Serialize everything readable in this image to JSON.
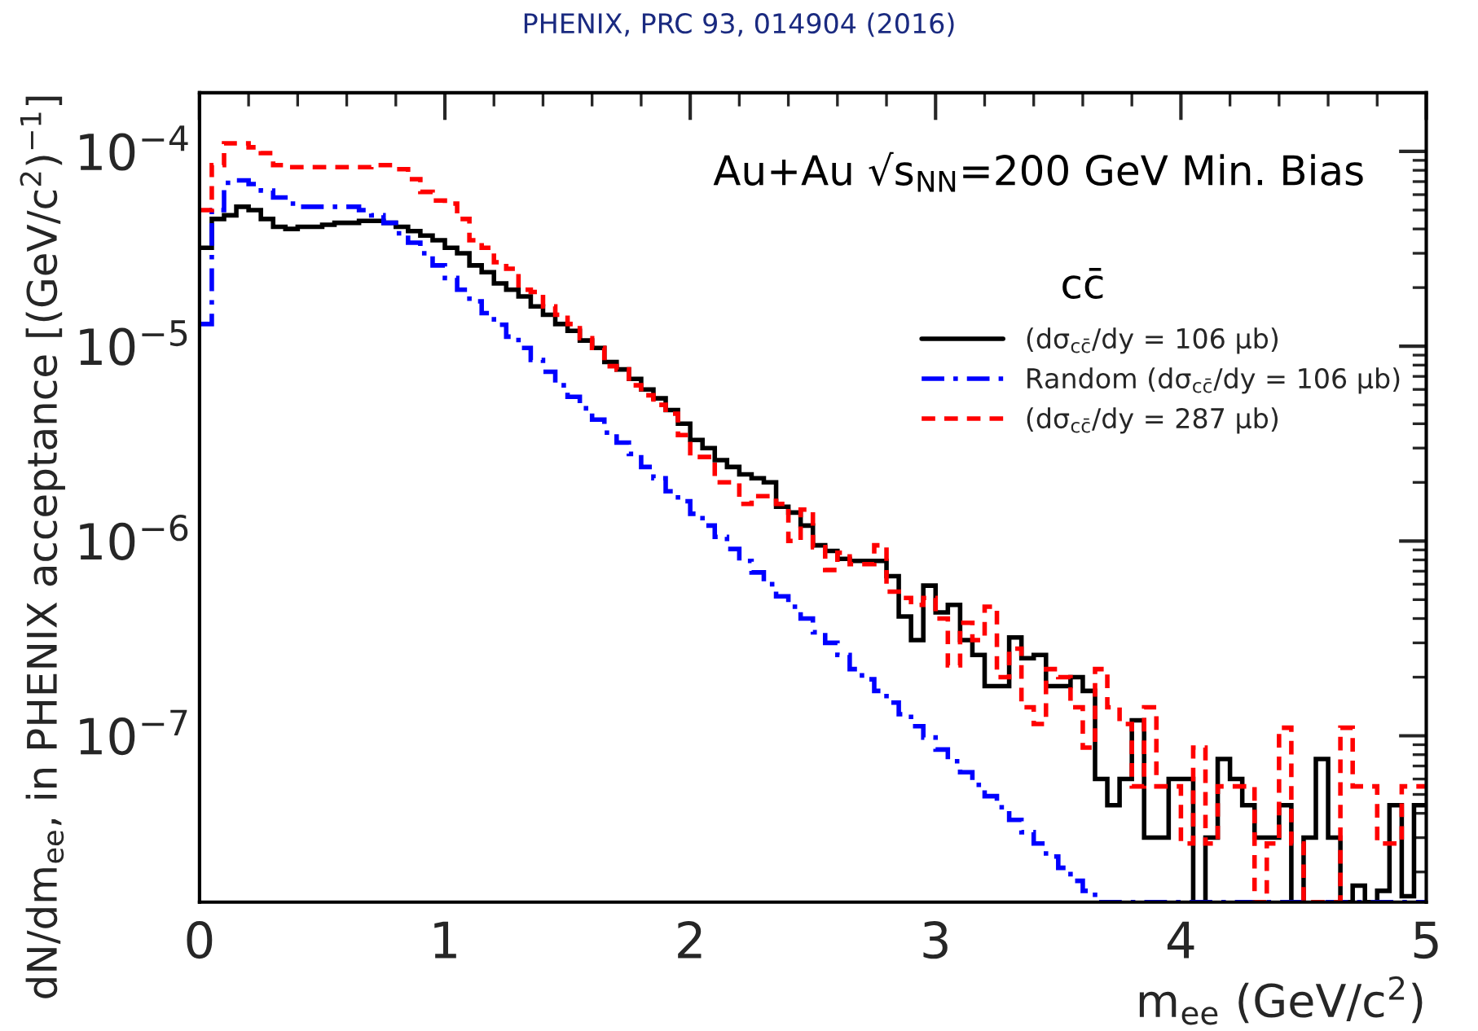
{
  "chart_data": {
    "type": "histogram",
    "xlabel": "m$_{ee}$ (GeV/c$^{2}$)",
    "ylabel": "dN/dm$_{ee}$, in PHENIX acceptance [(GeV/c$^{2}$)$^{−1}$]",
    "annotations": [
      "PHENIX, PRC 93, 014904 (2016)",
      "Au+Au √s$_{NN}$=200 GeV Min. Bias",
      "cc̄"
    ],
    "bins": [
      0,
      0.05,
      0.1,
      0.15,
      0.2,
      0.25,
      0.3,
      0.35,
      0.4,
      0.45,
      0.5,
      0.55,
      0.6,
      0.65,
      0.7,
      0.75,
      0.8,
      0.85,
      0.9,
      0.95,
      1,
      1.05,
      1.1,
      1.15,
      1.2,
      1.25,
      1.3,
      1.35,
      1.4,
      1.45,
      1.5,
      1.55,
      1.6,
      1.65,
      1.7,
      1.75,
      1.8,
      1.85,
      1.9,
      1.95,
      2,
      2.05,
      2.1,
      2.15,
      2.2,
      2.25,
      2.3,
      2.35,
      2.4,
      2.45,
      2.5,
      2.55,
      2.6,
      2.65,
      2.7,
      2.75,
      2.8,
      2.85,
      2.9,
      2.95,
      3,
      3.05,
      3.1,
      3.15,
      3.2,
      3.25,
      3.3,
      3.35,
      3.4,
      3.45,
      3.5,
      3.55,
      3.6,
      3.65,
      3.7,
      3.75,
      3.8,
      3.85,
      3.9,
      3.95,
      4,
      4.05,
      4.1,
      4.15,
      4.2,
      4.25,
      4.3,
      4.35,
      4.4,
      4.45,
      4.5,
      4.55,
      4.6,
      4.65,
      4.7,
      4.75,
      4.8,
      4.85,
      4.9,
      4.95,
      5
    ],
    "series": [
      {
        "name": "(dσ$_{cc̄}$/dy = 106 μb)",
        "color": "#000000",
        "line_style": "solid",
        "values": [
          3.2e-05,
          4.5e-05,
          4.7e-05,
          5.2e-05,
          5e-05,
          4.5e-05,
          4.1e-05,
          4e-05,
          4.1e-05,
          4.1e-05,
          4.2e-05,
          4.3e-05,
          4.3e-05,
          4.4e-05,
          4.4e-05,
          4.3e-05,
          4.1e-05,
          3.9e-05,
          3.7e-05,
          3.5e-05,
          3.2e-05,
          3e-05,
          2.6e-05,
          2.4e-05,
          2.1e-05,
          1.95e-05,
          1.8e-05,
          1.6e-05,
          1.45e-05,
          1.3e-05,
          1.2e-05,
          1.07e-05,
          9.8e-06,
          8.3e-06,
          7.6e-06,
          6.8e-06,
          6e-06,
          5.4e-06,
          4.7e-06,
          4e-06,
          3.3e-06,
          3e-06,
          2.6e-06,
          2.4e-06,
          2.2e-06,
          2.1e-06,
          2e-06,
          1.5e-06,
          1.4e-06,
          1.2e-06,
          9.5e-07,
          8.9e-07,
          8.1e-07,
          7.9e-07,
          7.9e-07,
          7.9e-07,
          6.6e-07,
          4.1e-07,
          3.1e-07,
          5.9e-07,
          4.3e-07,
          4.7e-07,
          3.1e-07,
          2.6e-07,
          1.8e-07,
          1.8e-07,
          3.2e-07,
          2.5e-07,
          2.6e-07,
          1.8e-07,
          1.8e-07,
          2e-07,
          1.7e-07,
          6e-08,
          4.4e-08,
          6e-08,
          1.2e-07,
          3e-08,
          3e-08,
          6e-08,
          6e-08,
          null,
          3e-08,
          7.6e-08,
          6e-08,
          4.4e-08,
          3e-08,
          3e-08,
          4.4e-08,
          null,
          3e-08,
          7.6e-08,
          3e-08,
          null,
          1.7e-08,
          null,
          1.6e-08,
          4.4e-08,
          1.5e-08,
          4.4e-08
        ]
      },
      {
        "name": "Random (dσ$_{cc̄}$/dy = 106 μb)",
        "color": "#0000ff",
        "line_style": "dashdot",
        "values": [
          1.3e-05,
          5e-05,
          6.9e-05,
          7.1e-05,
          6.8e-05,
          6.3e-05,
          5.8e-05,
          5.4e-05,
          5.2e-05,
          5.2e-05,
          5.2e-05,
          5.2e-05,
          5.2e-05,
          5e-05,
          4.7e-05,
          4.3e-05,
          3.8e-05,
          3.4e-05,
          3e-05,
          2.6e-05,
          2.24e-05,
          1.95e-05,
          1.7e-05,
          1.48e-05,
          1.29e-05,
          1.12e-05,
          9.8e-06,
          8.5e-06,
          7.4e-06,
          6.3e-06,
          5.5e-06,
          4.8e-06,
          4.2e-06,
          3.6e-06,
          3.2e-06,
          2.8e-06,
          2.4e-06,
          2.1e-06,
          1.8e-06,
          1.6e-06,
          1.38e-06,
          1.2e-06,
          1.05e-06,
          9.1e-07,
          7.9e-07,
          6.9e-07,
          6e-07,
          5.2e-07,
          4.6e-07,
          4e-07,
          3.4e-07,
          3e-07,
          2.6e-07,
          2.2e-07,
          1.95e-07,
          1.7e-07,
          1.48e-07,
          1.29e-07,
          1.12e-07,
          9.8e-08,
          8.5e-08,
          7.4e-08,
          6.5e-08,
          5.6e-08,
          4.9e-08,
          4.3e-08,
          3.7e-08,
          3.2e-08,
          2.8e-08,
          2.4e-08,
          2.1e-08,
          1.8e-08,
          1.6e-08,
          null,
          null,
          null,
          null,
          null,
          null,
          null,
          null,
          null,
          null,
          null,
          null,
          null,
          null,
          null,
          null,
          null,
          null,
          null,
          null,
          null,
          null,
          null,
          null,
          null,
          null,
          null
        ]
      },
      {
        "name": "(dσ$_{cc̄}$/dy = 287 μb)",
        "color": "#ff0000",
        "line_style": "dashed",
        "values": [
          5e-05,
          8.5e-05,
          0.00011,
          0.00011,
          0.000105,
          9.8e-05,
          8.5e-05,
          8.3e-05,
          8.3e-05,
          8.3e-05,
          8.3e-05,
          8.3e-05,
          8.3e-05,
          8.3e-05,
          8.5e-05,
          8.5e-05,
          8.1e-05,
          7.2e-05,
          6.2e-05,
          5.6e-05,
          5.4e-05,
          4.5e-05,
          3.5e-05,
          3.2e-05,
          2.7e-05,
          2.5e-05,
          1.95e-05,
          1.9e-05,
          1.6e-05,
          1.45e-05,
          1.3e-05,
          1.1e-05,
          9.8e-06,
          7.9e-06,
          7.6e-06,
          6.3e-06,
          5.6e-06,
          5e-06,
          4.5e-06,
          3.5e-06,
          2.7e-06,
          2.7e-06,
          2e-06,
          2e-06,
          1.55e-06,
          1.7e-06,
          1.7e-06,
          1.55e-06,
          1e-06,
          1.45e-06,
          9.3e-07,
          7.1e-07,
          8.7e-07,
          7.6e-07,
          7.6e-07,
          9.5e-07,
          5.5e-07,
          5.1e-07,
          4.7e-07,
          5.1e-07,
          4e-07,
          2.3e-07,
          3.8e-07,
          3.1e-07,
          4.6e-07,
          2e-07,
          2.8e-07,
          1.4e-07,
          1.15e-07,
          2.2e-07,
          2e-07,
          1.4e-07,
          8.7e-08,
          2.2e-07,
          1.4e-07,
          1.15e-07,
          5.5e-08,
          1.4e-07,
          5.5e-08,
          5.5e-08,
          2.8e-08,
          8.7e-08,
          2.8e-08,
          5.5e-08,
          5.5e-08,
          5.5e-08,
          null,
          2.8e-08,
          1.1e-07,
          2.8e-08,
          null,
          null,
          null,
          1.1e-07,
          5.5e-08,
          5.5e-08,
          2.8e-08,
          2.8e-08,
          5.5e-08,
          5.5e-08
        ]
      }
    ],
    "log": "y",
    "xlim": [
      0,
      5
    ],
    "xticks": [
      0,
      1,
      2,
      3,
      4,
      5
    ],
    "ylim": [
      1.4e-08,
      0.0002
    ],
    "yticks": [
      {
        "value": 1e-07,
        "label": "10$^{−7}$"
      },
      {
        "value": 1e-06,
        "label": "10$^{−6}$"
      },
      {
        "value": 1e-05,
        "label": "10$^{−5}$"
      },
      {
        "value": 0.0001,
        "label": "10$^{−4}$"
      }
    ],
    "grid": false,
    "legend": "top right"
  }
}
